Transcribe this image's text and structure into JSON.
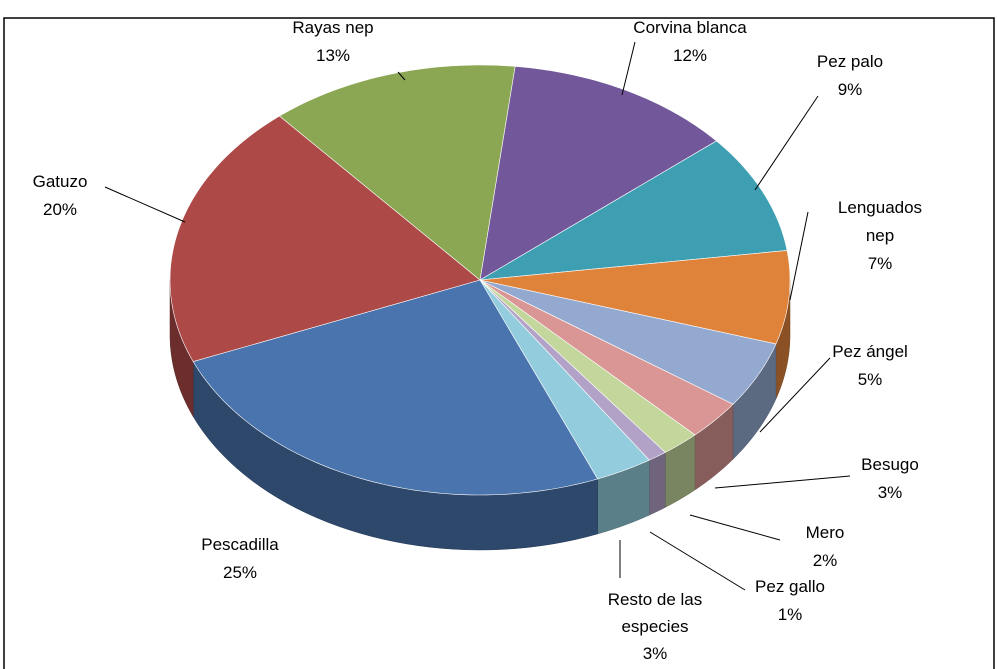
{
  "chart_data": {
    "type": "pie3d",
    "categories": [
      "Corvina blanca",
      "Pez palo",
      "Lenguados nep",
      "Pez ángel",
      "Besugo",
      "Mero",
      "Pez gallo",
      "Resto de las especies",
      "Pescadilla",
      "Gatuzo",
      "Rayas nep"
    ],
    "values": [
      12,
      9,
      7,
      5,
      3,
      2,
      1,
      3,
      25,
      20,
      13
    ],
    "value_labels": [
      "12%",
      "9%",
      "7%",
      "5%",
      "3%",
      "2%",
      "1%",
      "3%",
      "25%",
      "20%",
      "13%"
    ],
    "colors": [
      "#72589a",
      "#3e9fb2",
      "#e0833a",
      "#93a9d0",
      "#d99694",
      "#c3d69b",
      "#b3a2c7",
      "#93cddd",
      "#4a74ad",
      "#ad4a47",
      "#8ba753"
    ]
  }
}
